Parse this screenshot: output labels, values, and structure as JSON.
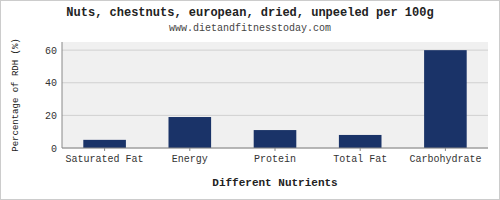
{
  "chart_data": {
    "type": "bar",
    "title": "Nuts, chestnuts, european, dried, unpeeled per 100g",
    "subtitle": "www.dietandfitnesstoday.com",
    "xlabel": "Different Nutrients",
    "ylabel": "Percentage of RDH (%)",
    "categories": [
      "Saturated Fat",
      "Energy",
      "Protein",
      "Total Fat",
      "Carbohydrate"
    ],
    "values": [
      5,
      19,
      11,
      8,
      60
    ],
    "color": "#1a3368",
    "ylim": [
      0,
      65
    ],
    "yticks": [
      0,
      20,
      40,
      60
    ],
    "grid": true
  }
}
